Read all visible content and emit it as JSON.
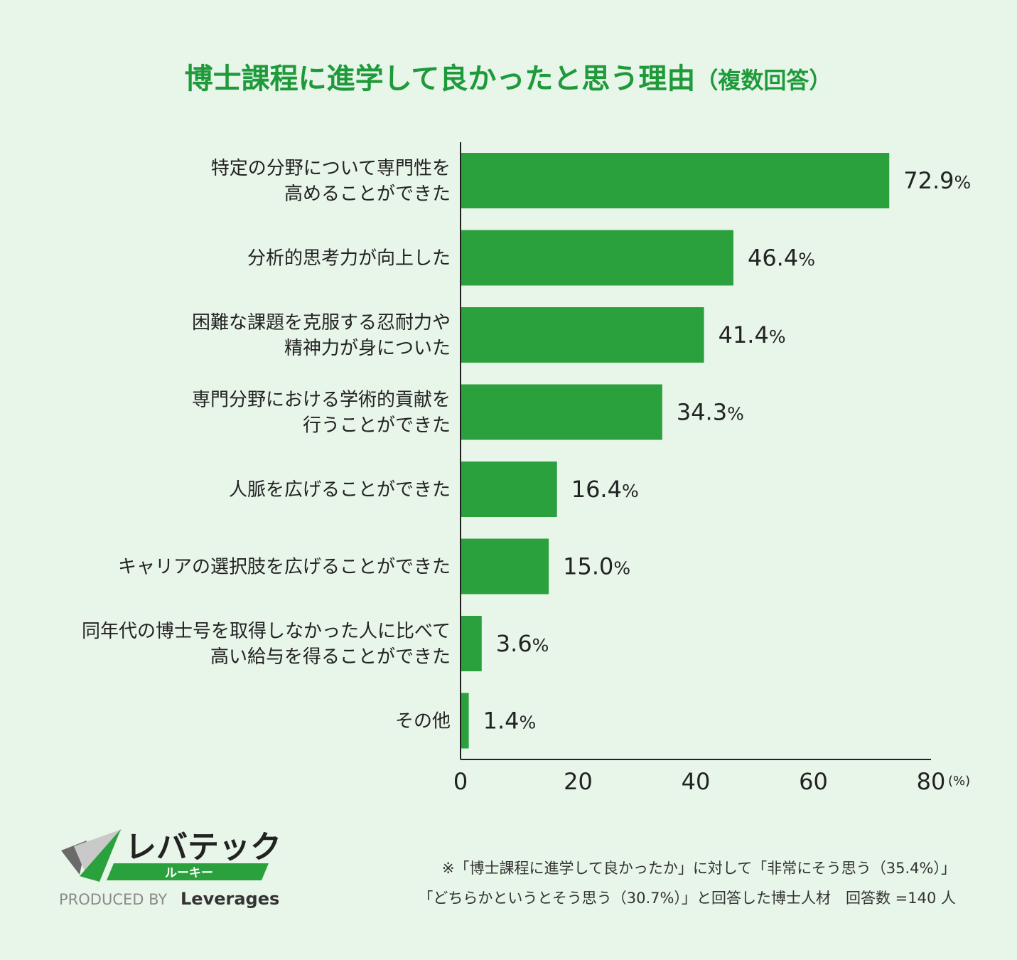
{
  "chart_data": {
    "type": "bar",
    "orientation": "horizontal",
    "title": "博士課程に進学して良かったと思う理由",
    "subtitle": "（複数回答）",
    "categories": [
      [
        "特定の分野について専門性を",
        "高めることができた"
      ],
      [
        "分析的思考力が向上した"
      ],
      [
        "困難な課題を克服する忍耐力や",
        "精神力が身についた"
      ],
      [
        "専門分野における学術的貢献を",
        "行うことができた"
      ],
      [
        "人脈を広げることができた"
      ],
      [
        "キャリアの選択肢を広げることができた"
      ],
      [
        "同年代の博士号を取得しなかった人に比べて",
        "高い給与を得ることができた"
      ],
      [
        "その他"
      ]
    ],
    "values": [
      72.9,
      46.4,
      41.4,
      34.3,
      16.4,
      15.0,
      3.6,
      1.4
    ],
    "value_labels": [
      "72.9",
      "46.4",
      "41.4",
      "34.3",
      "16.4",
      "15.0",
      "3.6",
      "1.4"
    ],
    "value_suffix": "%",
    "xlim": [
      0,
      80
    ],
    "xticks": [
      0,
      20,
      40,
      60,
      80
    ],
    "xunit": "(%)",
    "grid": false,
    "bar_color": "#2aa13c",
    "title_color": "#1e9a3a"
  },
  "footnote": {
    "line1": "※「博士課程に進学して良かったか」に対して「非常にそう思う（35.4%）」",
    "line2": "「どちらかというとそう思う（30.7%）」と回答した博士人材　回答数 =140 人"
  },
  "logo": {
    "brand": "レバテック",
    "sub": "ルーキー",
    "produced_by": "PRODUCED BY",
    "company": "Leverages"
  }
}
